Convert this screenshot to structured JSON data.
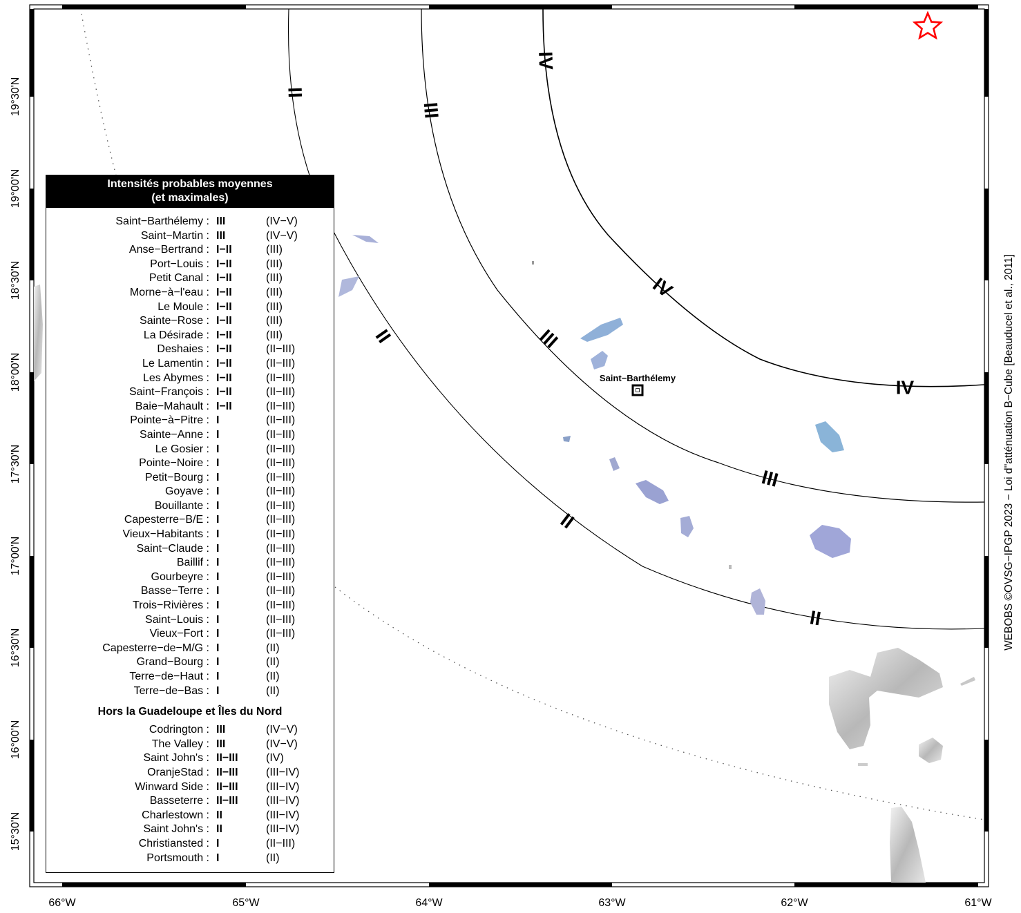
{
  "map": {
    "lon_ticks": [
      "66°W",
      "65°W",
      "64°W",
      "63°W",
      "62°W",
      "61°W"
    ],
    "lat_ticks": [
      "19°30'N",
      "19°00'N",
      "18°30'N",
      "18°00'N",
      "17°30'N",
      "17°00'N",
      "16°30'N",
      "16°00'N",
      "15°30'N"
    ],
    "isoseismal_labels": {
      "IV": "IV",
      "III": "III",
      "II": "II"
    },
    "place_label": "Saint−Barthélemy",
    "epicenter_icon": "star-icon",
    "epicenter_color": "#ff0000",
    "credit": "WEBOBS ©OVSG−IPGP 2023 − Loi d''atténuation B−Cube [Beauducel et al., 2011]"
  },
  "legend": {
    "title_line1": "Intensités probables moyennes",
    "title_line2": "(et maximales)",
    "guadeloupe": [
      {
        "name": "Saint−Barthélemy :",
        "mean": "III",
        "max": "(IV−V)"
      },
      {
        "name": "Saint−Martin :",
        "mean": "III",
        "max": "(IV−V)"
      },
      {
        "name": "Anse−Bertrand :",
        "mean": "I−II",
        "max": "(III)"
      },
      {
        "name": "Port−Louis :",
        "mean": "I−II",
        "max": "(III)"
      },
      {
        "name": "Petit Canal :",
        "mean": "I−II",
        "max": "(III)"
      },
      {
        "name": "Morne−à−l'eau :",
        "mean": "I−II",
        "max": "(III)"
      },
      {
        "name": "Le Moule :",
        "mean": "I−II",
        "max": "(III)"
      },
      {
        "name": "Sainte−Rose :",
        "mean": "I−II",
        "max": "(III)"
      },
      {
        "name": "La Désirade :",
        "mean": "I−II",
        "max": "(III)"
      },
      {
        "name": "Deshaies :",
        "mean": "I−II",
        "max": "(II−III)"
      },
      {
        "name": "Le Lamentin :",
        "mean": "I−II",
        "max": "(II−III)"
      },
      {
        "name": "Les Abymes :",
        "mean": "I−II",
        "max": "(II−III)"
      },
      {
        "name": "Saint−François :",
        "mean": "I−II",
        "max": "(II−III)"
      },
      {
        "name": "Baie−Mahault :",
        "mean": "I−II",
        "max": "(II−III)"
      },
      {
        "name": "Pointe−à−Pitre :",
        "mean": "I",
        "max": "(II−III)"
      },
      {
        "name": "Sainte−Anne :",
        "mean": "I",
        "max": "(II−III)"
      },
      {
        "name": "Le Gosier :",
        "mean": "I",
        "max": "(II−III)"
      },
      {
        "name": "Pointe−Noire :",
        "mean": "I",
        "max": "(II−III)"
      },
      {
        "name": "Petit−Bourg :",
        "mean": "I",
        "max": "(II−III)"
      },
      {
        "name": "Goyave :",
        "mean": "I",
        "max": "(II−III)"
      },
      {
        "name": "Bouillante :",
        "mean": "I",
        "max": "(II−III)"
      },
      {
        "name": "Capesterre−B/E :",
        "mean": "I",
        "max": "(II−III)"
      },
      {
        "name": "Vieux−Habitants :",
        "mean": "I",
        "max": "(II−III)"
      },
      {
        "name": "Saint−Claude :",
        "mean": "I",
        "max": "(II−III)"
      },
      {
        "name": "Baillif :",
        "mean": "I",
        "max": "(II−III)"
      },
      {
        "name": "Gourbeyre :",
        "mean": "I",
        "max": "(II−III)"
      },
      {
        "name": "Basse−Terre :",
        "mean": "I",
        "max": "(II−III)"
      },
      {
        "name": "Trois−Rivières :",
        "mean": "I",
        "max": "(II−III)"
      },
      {
        "name": "Saint−Louis :",
        "mean": "I",
        "max": "(II−III)"
      },
      {
        "name": "Vieux−Fort :",
        "mean": "I",
        "max": "(II−III)"
      },
      {
        "name": "Capesterre−de−M/G :",
        "mean": "I",
        "max": "(II)"
      },
      {
        "name": "Grand−Bourg :",
        "mean": "I",
        "max": "(II)"
      },
      {
        "name": "Terre−de−Haut :",
        "mean": "I",
        "max": "(II)"
      },
      {
        "name": "Terre−de−Bas :",
        "mean": "I",
        "max": "(II)"
      }
    ],
    "outside_title": "Hors la Guadeloupe et Îles du Nord",
    "outside": [
      {
        "name": "Codrington :",
        "mean": "III",
        "max": "(IV−V)"
      },
      {
        "name": "The Valley :",
        "mean": "III",
        "max": "(IV−V)"
      },
      {
        "name": "Saint John's :",
        "mean": "II−III",
        "max": "(IV)"
      },
      {
        "name": "OranjeStad :",
        "mean": "II−III",
        "max": "(III−IV)"
      },
      {
        "name": "Winward Side :",
        "mean": "II−III",
        "max": "(III−IV)"
      },
      {
        "name": "Basseterre :",
        "mean": "II−III",
        "max": "(III−IV)"
      },
      {
        "name": "Charlestown :",
        "mean": "II",
        "max": "(III−IV)"
      },
      {
        "name": "Saint John's :",
        "mean": "II",
        "max": "(III−IV)"
      },
      {
        "name": "Christiansted :",
        "mean": "I",
        "max": "(II−III)"
      },
      {
        "name": "Portsmouth :",
        "mean": "I",
        "max": "(II)"
      }
    ]
  }
}
